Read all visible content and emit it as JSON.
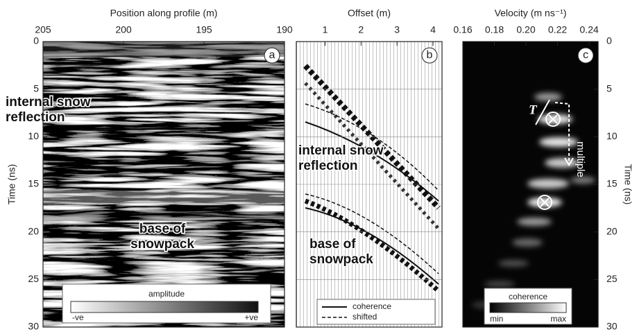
{
  "chart_data": [
    {
      "type": "image",
      "panel": "a",
      "xlabel": "Position along profile (m)",
      "xlim": [
        205,
        190
      ],
      "xticks": [
        205,
        200,
        195,
        190
      ],
      "ylabel": "Time (ns)",
      "ylim": [
        0,
        30
      ],
      "yticks": [
        0,
        5,
        10,
        15,
        20,
        25,
        30
      ],
      "annotations": [
        "internal snow",
        "reflection",
        "base of",
        "snowpack"
      ],
      "colorbar": {
        "title": "amplitude",
        "min_label": "-ve",
        "max_label": "+ve"
      }
    },
    {
      "type": "image",
      "panel": "b",
      "xlabel": "Offset (m)",
      "xlim": [
        0.2,
        4.25
      ],
      "xticks": [
        1,
        2,
        3,
        4
      ],
      "ylim": [
        0,
        30
      ],
      "yticks": [
        5,
        10,
        15,
        20,
        25
      ],
      "grid": true,
      "annotations": [
        "internal snow",
        "reflection",
        "base of",
        "snowpack"
      ],
      "legend": [
        "coherence",
        "shifted"
      ]
    },
    {
      "type": "image",
      "panel": "c",
      "xlabel": "Velocity (m ns⁻¹)",
      "xlim": [
        0.16,
        0.2457
      ],
      "xticks": [
        0.16,
        0.18,
        {
          "value": 0.2,
          "label": "0.20"
        },
        0.22,
        0.24
      ],
      "ylabel": "Time (ns)",
      "ylim": [
        0,
        30
      ],
      "yticks": [
        0,
        5,
        10,
        15,
        20,
        25,
        30
      ],
      "annotations": [
        "T",
        "multiple"
      ],
      "colorbar": {
        "title": "coherence",
        "min_label": "min",
        "max_label": "max"
      }
    }
  ]
}
